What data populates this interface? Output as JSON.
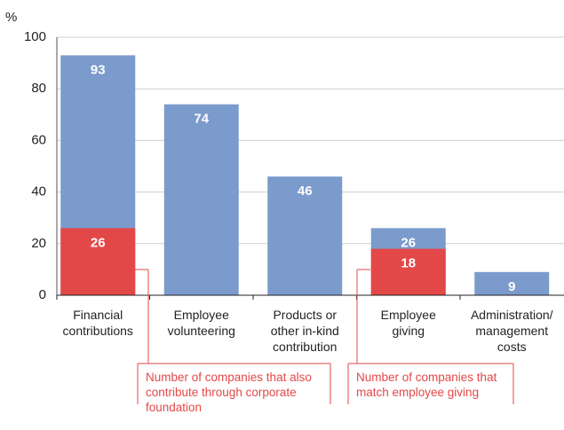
{
  "chart_data": {
    "type": "bar",
    "y_unit": "%",
    "categories": [
      "Financial\ncontributions",
      "Employee\nvolunteering",
      "Products or\nother in-kind\ncontribution",
      "Employee\ngiving",
      "Administration/\nmanagement\ncosts"
    ],
    "series": [
      {
        "color": "#7b9bcc",
        "values": [
          93,
          74,
          46,
          26,
          9
        ]
      },
      {
        "color": "#e34848",
        "values": [
          26,
          null,
          null,
          18,
          null
        ]
      }
    ],
    "ylim": [
      0,
      100
    ],
    "yticks": [
      0,
      20,
      40,
      60,
      80,
      100
    ],
    "grid": true,
    "annotations": [
      {
        "text": "Number of companies that also contribute through corporate foundation"
      },
      {
        "text": "Number of companies that match employee giving"
      }
    ]
  }
}
